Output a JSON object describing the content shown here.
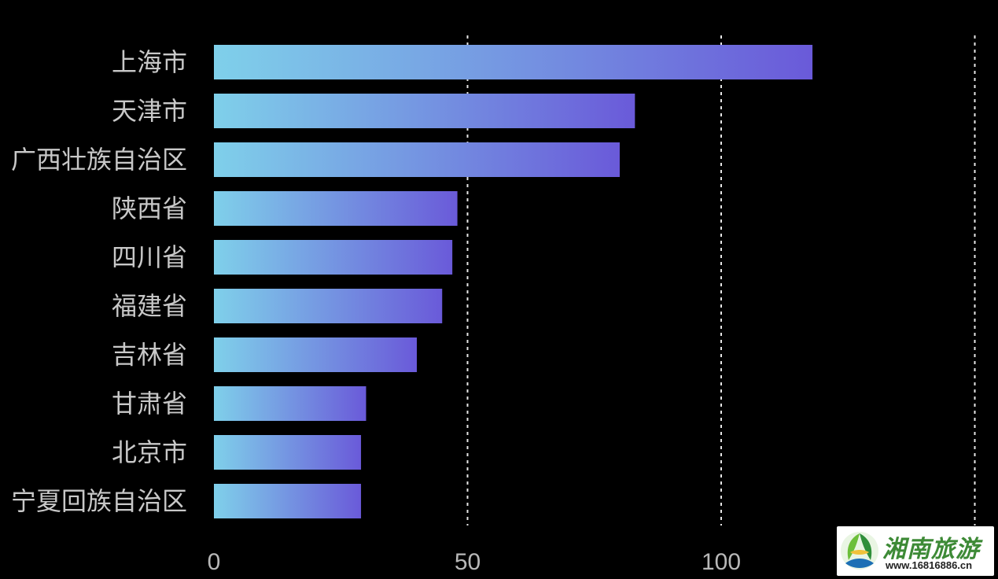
{
  "chart_data": {
    "type": "bar",
    "orientation": "horizontal",
    "categories": [
      "上海市",
      "天津市",
      "广西壮族自治区",
      "陕西省",
      "四川省",
      "福建省",
      "吉林省",
      "甘肃省",
      "北京市",
      "宁夏回族自治区"
    ],
    "values": [
      118,
      83,
      80,
      48,
      47,
      45,
      40,
      30,
      29,
      29
    ],
    "xlim": [
      0,
      150
    ],
    "xticks": [
      0,
      50,
      100
    ],
    "grid": "vertical dashed",
    "bar_gradient": {
      "start": "#7fd0ea",
      "end": "#6a5ad9"
    },
    "title": "",
    "xlabel": "",
    "ylabel": ""
  },
  "colors": {
    "background": "#000000",
    "label": "#c8c8c8",
    "grid": "#e6e6e6"
  },
  "watermark": {
    "brand": "湘南旅游",
    "url": "www.16816886.cn"
  }
}
